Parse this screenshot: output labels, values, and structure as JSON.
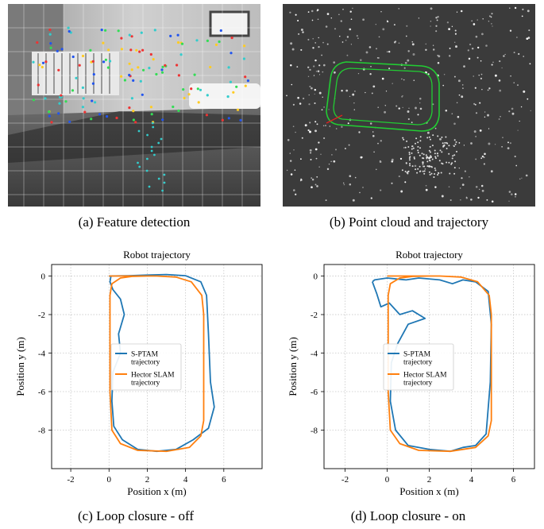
{
  "captions": {
    "a": "(a) Feature detection",
    "b": "(b) Point cloud and trajectory",
    "c": "(c) Loop closure - off",
    "d": "(d) Loop closure - on"
  },
  "colors": {
    "sptam": "#1f77b4",
    "hector": "#ff7f0e",
    "trajectory_green": "#22cc33",
    "grid": "#bbbbbb"
  },
  "chart_data": [
    {
      "id": "c",
      "type": "line",
      "title": "Robot trajectory",
      "xlabel": "Position x (m)",
      "ylabel": "Position y (m)",
      "xlim": [
        -3,
        8
      ],
      "ylim": [
        -10,
        0.6
      ],
      "xticks": [
        "-2",
        "0",
        "2",
        "4",
        "6"
      ],
      "yticks": [
        "0",
        "-2",
        "-4",
        "-6",
        "-8"
      ],
      "grid": true,
      "legend_position": "center-left",
      "series": [
        {
          "name": "S-PTAM trajectory",
          "legend_lines": [
            "S-PTAM",
            "trajectory"
          ],
          "color": "#1f77b4",
          "x": [
            0,
            1.0,
            2.0,
            3.0,
            4.0,
            4.8,
            5.1,
            5.2,
            5.3,
            5.5,
            5.2,
            4.4,
            3.5,
            2.5,
            1.5,
            0.7,
            0.25,
            0.15,
            0.2,
            0.6,
            0.5,
            0.8,
            0.6,
            0.2,
            0.05,
            0.1
          ],
          "y": [
            0,
            0.02,
            0.05,
            0.08,
            0.02,
            -0.3,
            -1.0,
            -3.0,
            -5.5,
            -6.8,
            -7.9,
            -8.5,
            -9.0,
            -9.1,
            -9.0,
            -8.5,
            -7.8,
            -6.5,
            -5.0,
            -4.0,
            -3.0,
            -2.0,
            -1.2,
            -0.7,
            -0.3,
            0
          ]
        },
        {
          "name": "Hector SLAM trajectory",
          "legend_lines": [
            "Hector SLAM",
            "trajectory"
          ],
          "color": "#ff7f0e",
          "x": [
            0,
            1.5,
            2.5,
            3.5,
            4.3,
            4.85,
            4.95,
            4.95,
            4.95,
            4.8,
            4.2,
            3.0,
            1.5,
            0.6,
            0.15,
            0.05,
            0.05,
            0.05,
            0.15,
            0.6,
            1.2,
            2.0
          ],
          "y": [
            0,
            0,
            0,
            -0.05,
            -0.3,
            -1.0,
            -2.0,
            -5.0,
            -7.5,
            -8.3,
            -8.9,
            -9.1,
            -9.05,
            -8.7,
            -8.0,
            -6.0,
            -3.0,
            -1.0,
            -0.4,
            -0.1,
            -0.02,
            0
          ]
        }
      ]
    },
    {
      "id": "d",
      "type": "line",
      "title": "Robot trajectory",
      "xlabel": "Position x (m)",
      "ylabel": "Position y (m)",
      "xlim": [
        -3,
        7
      ],
      "ylim": [
        -10,
        0.6
      ],
      "xticks": [
        "-2",
        "0",
        "2",
        "4",
        "6"
      ],
      "yticks": [
        "0",
        "-2",
        "-4",
        "-6",
        "-8"
      ],
      "grid": true,
      "legend_position": "center-left",
      "series": [
        {
          "name": "S-PTAM trajectory",
          "legend_lines": [
            "S-PTAM",
            "trajectory"
          ],
          "color": "#1f77b4",
          "x": [
            -0.7,
            -0.6,
            0.0,
            0.9,
            1.5,
            2.5,
            3.1,
            3.6,
            4.2,
            4.8,
            4.95,
            4.9,
            4.7,
            4.2,
            3.6,
            3.0,
            2.0,
            1.0,
            0.4,
            0.15,
            0.2,
            0.5,
            1.0,
            1.8,
            1.2,
            0.6,
            0.1,
            -0.3,
            -0.5,
            -0.7
          ],
          "y": [
            -0.3,
            -0.2,
            -0.1,
            -0.2,
            -0.1,
            -0.2,
            -0.4,
            -0.2,
            -0.3,
            -0.8,
            -2.5,
            -5.5,
            -8.2,
            -8.8,
            -8.9,
            -9.1,
            -9.0,
            -8.8,
            -8.0,
            -6.5,
            -4.5,
            -3.5,
            -2.5,
            -2.2,
            -1.8,
            -2.0,
            -1.4,
            -1.6,
            -0.9,
            -0.3
          ]
        },
        {
          "name": "Hector SLAM trajectory",
          "legend_lines": [
            "Hector SLAM",
            "trajectory"
          ],
          "color": "#ff7f0e",
          "x": [
            0,
            1.5,
            2.5,
            3.5,
            4.3,
            4.85,
            4.95,
            4.95,
            4.95,
            4.8,
            4.2,
            3.0,
            1.5,
            0.6,
            0.15,
            0.05,
            0.05,
            0.05,
            0.15,
            0.6,
            1.2,
            2.0
          ],
          "y": [
            0,
            0,
            0,
            -0.05,
            -0.3,
            -1.0,
            -2.0,
            -5.0,
            -7.5,
            -8.3,
            -8.9,
            -9.1,
            -9.05,
            -8.7,
            -8.0,
            -6.0,
            -3.0,
            -1.0,
            -0.4,
            -0.1,
            -0.02,
            0
          ]
        }
      ]
    }
  ]
}
